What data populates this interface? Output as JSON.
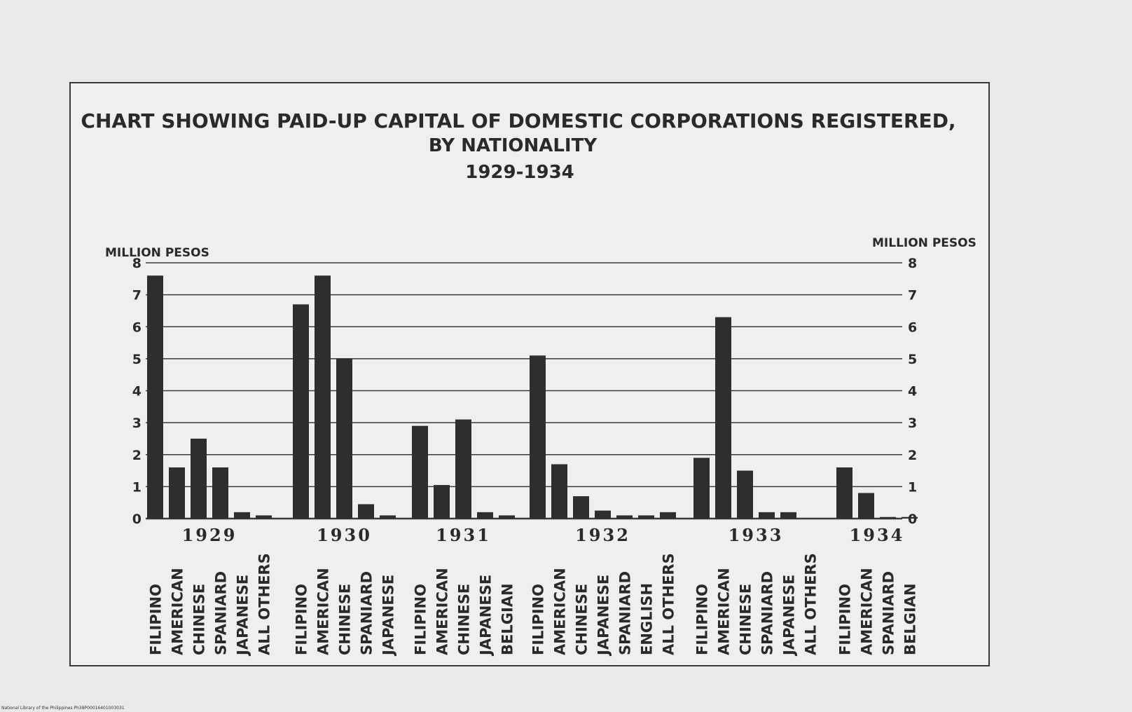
{
  "chart_data": {
    "type": "bar",
    "title": "CHART SHOWING PAID-UP CAPITAL OF DOMESTIC CORPORATIONS REGISTERED,",
    "subtitle": "BY NATIONALITY",
    "years_label": "1929-1934",
    "ylabel_left": "MILLION PESOS",
    "ylabel_right": "MILLION PESOS",
    "ylim": [
      0,
      8
    ],
    "yticks": [
      0,
      1,
      2,
      3,
      4,
      5,
      6,
      7,
      8
    ],
    "groups": [
      {
        "year": "1929",
        "bars": [
          {
            "category": "FILIPINO",
            "value": 7.6
          },
          {
            "category": "AMERICAN",
            "value": 1.6
          },
          {
            "category": "CHINESE",
            "value": 2.5
          },
          {
            "category": "SPANIARD",
            "value": 1.6
          },
          {
            "category": "JAPANESE",
            "value": 0.2
          },
          {
            "category": "ALL OTHERS",
            "value": 0.1
          }
        ]
      },
      {
        "year": "1930",
        "bars": [
          {
            "category": "FILIPINO",
            "value": 6.7
          },
          {
            "category": "AMERICAN",
            "value": 7.6
          },
          {
            "category": "CHINESE",
            "value": 5.0
          },
          {
            "category": "SPANIARD",
            "value": 0.45
          },
          {
            "category": "JAPANESE",
            "value": 0.1
          }
        ]
      },
      {
        "year": "1931",
        "bars": [
          {
            "category": "FILIPINO",
            "value": 2.9
          },
          {
            "category": "AMERICAN",
            "value": 1.05
          },
          {
            "category": "CHINESE",
            "value": 3.1
          },
          {
            "category": "JAPANESE",
            "value": 0.2
          },
          {
            "category": "BELGIAN",
            "value": 0.1
          }
        ]
      },
      {
        "year": "1932",
        "bars": [
          {
            "category": "FILIPINO",
            "value": 5.1
          },
          {
            "category": "AMERICAN",
            "value": 1.7
          },
          {
            "category": "CHINESE",
            "value": 0.7
          },
          {
            "category": "JAPANESE",
            "value": 0.25
          },
          {
            "category": "SPANIARD",
            "value": 0.1
          },
          {
            "category": "ENGLISH",
            "value": 0.1
          },
          {
            "category": "ALL OTHERS",
            "value": 0.2
          }
        ]
      },
      {
        "year": "1933",
        "bars": [
          {
            "category": "FILIPINO",
            "value": 1.9
          },
          {
            "category": "AMERICAN",
            "value": 6.3
          },
          {
            "category": "CHINESE",
            "value": 1.5
          },
          {
            "category": "SPANIARD",
            "value": 0.2
          },
          {
            "category": "JAPANESE",
            "value": 0.2
          },
          {
            "category": "ALL OTHERS",
            "value": 0
          }
        ]
      },
      {
        "year": "1934",
        "bars": [
          {
            "category": "FILIPINO",
            "value": 1.6
          },
          {
            "category": "AMERICAN",
            "value": 0.8
          },
          {
            "category": "SPANIARD",
            "value": 0.05
          },
          {
            "category": "BELGIAN",
            "value": 0.05
          }
        ]
      }
    ],
    "grid": true,
    "legend": "none",
    "bar_color": "#2e2e2e"
  },
  "footer": {
    "text": "National Library of the Philippines   Ph38P00016401003031"
  },
  "colors": {
    "background": "#e9e9e7",
    "chart_background": "#efefed",
    "ink": "#2a2a2a",
    "bar": "#2e2e2e"
  }
}
